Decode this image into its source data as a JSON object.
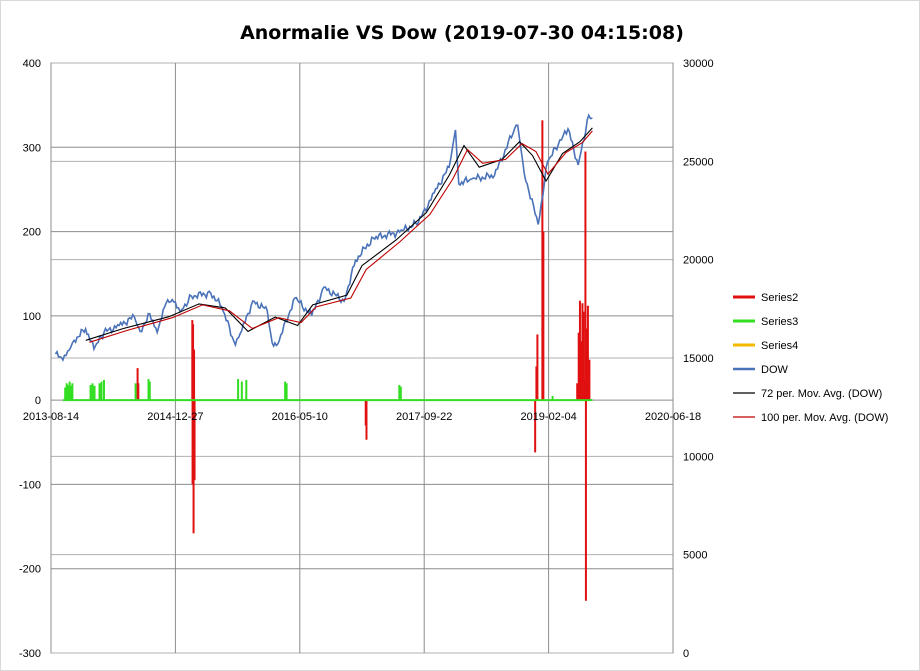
{
  "chart_data": {
    "type": "bar",
    "title": "Anormalie VS Dow (2019-07-30  04:15:08)",
    "xlabel": "",
    "ylabel": "",
    "grid": true,
    "legend_position": "right",
    "x_axis": {
      "type": "date",
      "range": [
        "2013-08-14",
        "2020-06-18"
      ],
      "ticks": [
        "2013-08-14",
        "2014-12-27",
        "2016-05-10",
        "2017-09-22",
        "2019-02-04",
        "2020-06-18"
      ]
    },
    "y_left": {
      "range": [
        -300,
        400
      ],
      "ticks": [
        400,
        300,
        200,
        100,
        0,
        -100,
        -200,
        -300
      ]
    },
    "y_right": {
      "range": [
        0,
        30000
      ],
      "ticks": [
        30000,
        25000,
        20000,
        15000,
        10000,
        5000,
        0
      ]
    },
    "colors": {
      "Series2": "#e01010",
      "Series3": "#33dd22",
      "Series4": "#f5b800",
      "DOW": "#4a72b8",
      "72 per. Mov. Avg. (DOW)": "#000000",
      "100 per. Mov. Avg. (DOW)": "#c00000",
      "grid": "#8c8c8c"
    },
    "legend": [
      "Series2",
      "Series3",
      "Series4",
      "DOW",
      "72 per. Mov. Avg. (DOW)",
      "100 per. Mov. Avg. (DOW)"
    ],
    "series": [
      {
        "name": "Series2",
        "axis": "left",
        "type": "bar",
        "points": [
          [
            "2014-07-28",
            38
          ],
          [
            "2014-07-31",
            20
          ],
          [
            "2015-03-05",
            95
          ],
          [
            "2015-03-06",
            -100
          ],
          [
            "2015-03-08",
            90
          ],
          [
            "2015-03-10",
            -158
          ],
          [
            "2015-03-12",
            60
          ],
          [
            "2015-03-14",
            -95
          ],
          [
            "2017-01-30",
            -30
          ],
          [
            "2017-02-02",
            -47
          ],
          [
            "2018-12-12",
            -62
          ],
          [
            "2018-12-17",
            40
          ],
          [
            "2018-12-21",
            78
          ],
          [
            "2019-01-10",
            332
          ],
          [
            "2019-01-14",
            200
          ],
          [
            "2019-05-30",
            20
          ],
          [
            "2019-06-05",
            80
          ],
          [
            "2019-06-10",
            118
          ],
          [
            "2019-06-14",
            70
          ],
          [
            "2019-06-20",
            115
          ],
          [
            "2019-06-24",
            105
          ],
          [
            "2019-06-28",
            25
          ],
          [
            "2019-07-02",
            295
          ],
          [
            "2019-07-04",
            -238
          ],
          [
            "2019-07-08",
            85
          ],
          [
            "2019-07-12",
            112
          ],
          [
            "2019-07-18",
            48
          ]
        ]
      },
      {
        "name": "Series3",
        "axis": "left",
        "type": "bar",
        "points": [
          [
            "2013-10-10",
            15
          ],
          [
            "2013-10-16",
            20
          ],
          [
            "2013-10-22",
            18
          ],
          [
            "2013-10-28",
            22
          ],
          [
            "2013-11-03",
            17
          ],
          [
            "2013-11-08",
            20
          ],
          [
            "2014-01-20",
            18
          ],
          [
            "2014-01-28",
            20
          ],
          [
            "2014-02-05",
            17
          ],
          [
            "2014-02-25",
            20
          ],
          [
            "2014-03-05",
            22
          ],
          [
            "2014-03-15",
            24
          ],
          [
            "2014-07-20",
            20
          ],
          [
            "2014-09-10",
            25
          ],
          [
            "2014-09-15",
            22
          ],
          [
            "2015-09-05",
            25
          ],
          [
            "2015-09-20",
            22
          ],
          [
            "2015-10-08",
            24
          ],
          [
            "2016-03-12",
            22
          ],
          [
            "2016-03-18",
            20
          ],
          [
            "2017-06-14",
            18
          ],
          [
            "2017-06-20",
            16
          ],
          [
            "2019-02-20",
            5
          ]
        ]
      },
      {
        "name": "Series4",
        "axis": "left",
        "type": "bar",
        "points": []
      },
      {
        "name": "DOW",
        "axis": "right",
        "type": "line",
        "points": [
          [
            "2013-09-01",
            15200
          ],
          [
            "2013-10-01",
            14900
          ],
          [
            "2013-10-20",
            15350
          ],
          [
            "2013-11-15",
            15900
          ],
          [
            "2013-12-31",
            16480
          ],
          [
            "2014-02-03",
            15450
          ],
          [
            "2014-03-15",
            16300
          ],
          [
            "2014-05-15",
            16650
          ],
          [
            "2014-07-15",
            17100
          ],
          [
            "2014-08-07",
            16350
          ],
          [
            "2014-09-15",
            17250
          ],
          [
            "2014-10-15",
            16300
          ],
          [
            "2014-11-20",
            17800
          ],
          [
            "2014-12-20",
            17850
          ],
          [
            "2015-01-15",
            17350
          ],
          [
            "2015-03-01",
            18150
          ],
          [
            "2015-05-18",
            18300
          ],
          [
            "2015-07-01",
            17600
          ],
          [
            "2015-08-25",
            15660
          ],
          [
            "2015-09-20",
            16400
          ],
          [
            "2015-11-03",
            17900
          ],
          [
            "2015-12-31",
            17420
          ],
          [
            "2016-01-20",
            15770
          ],
          [
            "2016-02-11",
            15700
          ],
          [
            "2016-04-20",
            18050
          ],
          [
            "2016-06-27",
            17150
          ],
          [
            "2016-08-15",
            18600
          ],
          [
            "2016-11-04",
            17890
          ],
          [
            "2016-12-20",
            19970
          ],
          [
            "2017-03-01",
            21100
          ],
          [
            "2017-06-15",
            21400
          ],
          [
            "2017-08-30",
            21900
          ],
          [
            "2017-11-01",
            23400
          ],
          [
            "2017-12-31",
            24700
          ],
          [
            "2018-01-26",
            26600
          ],
          [
            "2018-02-08",
            23860
          ],
          [
            "2018-04-01",
            24100
          ],
          [
            "2018-07-01",
            24270
          ],
          [
            "2018-09-20",
            26650
          ],
          [
            "2018-10-03",
            26830
          ],
          [
            "2018-10-29",
            24400
          ],
          [
            "2018-12-24",
            21790
          ],
          [
            "2019-01-31",
            24990
          ],
          [
            "2019-03-15",
            25850
          ],
          [
            "2019-04-23",
            26650
          ],
          [
            "2019-06-03",
            24820
          ],
          [
            "2019-07-15",
            27340
          ],
          [
            "2019-07-30",
            27200
          ]
        ]
      },
      {
        "name": "72 per. Mov. Avg. (DOW)",
        "axis": "right",
        "type": "line",
        "points": [
          [
            "2014-01-01",
            15900
          ],
          [
            "2014-06-01",
            16500
          ],
          [
            "2014-12-01",
            17100
          ],
          [
            "2015-04-01",
            17750
          ],
          [
            "2015-07-15",
            17550
          ],
          [
            "2015-10-15",
            16350
          ],
          [
            "2016-02-01",
            17080
          ],
          [
            "2016-05-01",
            16650
          ],
          [
            "2016-07-01",
            17700
          ],
          [
            "2016-11-15",
            18200
          ],
          [
            "2017-01-15",
            19700
          ],
          [
            "2017-06-01",
            21000
          ],
          [
            "2017-10-01",
            22400
          ],
          [
            "2018-01-01",
            24300
          ],
          [
            "2018-03-01",
            25800
          ],
          [
            "2018-05-01",
            24700
          ],
          [
            "2018-08-01",
            25100
          ],
          [
            "2018-10-10",
            26000
          ],
          [
            "2018-12-01",
            25300
          ],
          [
            "2019-01-25",
            24000
          ],
          [
            "2019-04-01",
            25400
          ],
          [
            "2019-06-10",
            26000
          ],
          [
            "2019-07-30",
            26700
          ]
        ]
      },
      {
        "name": "100 per. Mov. Avg. (DOW)",
        "axis": "right",
        "type": "line",
        "points": [
          [
            "2014-01-15",
            15800
          ],
          [
            "2014-06-15",
            16400
          ],
          [
            "2014-12-15",
            17050
          ],
          [
            "2015-04-15",
            17700
          ],
          [
            "2015-08-01",
            17400
          ],
          [
            "2015-11-01",
            16500
          ],
          [
            "2016-02-15",
            17050
          ],
          [
            "2016-05-15",
            16800
          ],
          [
            "2016-07-15",
            17600
          ],
          [
            "2016-12-01",
            18050
          ],
          [
            "2017-02-01",
            19500
          ],
          [
            "2017-06-15",
            20900
          ],
          [
            "2017-10-15",
            22300
          ],
          [
            "2018-01-15",
            24100
          ],
          [
            "2018-03-15",
            25600
          ],
          [
            "2018-05-15",
            24900
          ],
          [
            "2018-08-15",
            25100
          ],
          [
            "2018-10-20",
            25900
          ],
          [
            "2018-12-15",
            25500
          ],
          [
            "2019-02-01",
            24350
          ],
          [
            "2019-04-15",
            25450
          ],
          [
            "2019-06-20",
            25950
          ],
          [
            "2019-07-30",
            26550
          ]
        ]
      }
    ]
  }
}
